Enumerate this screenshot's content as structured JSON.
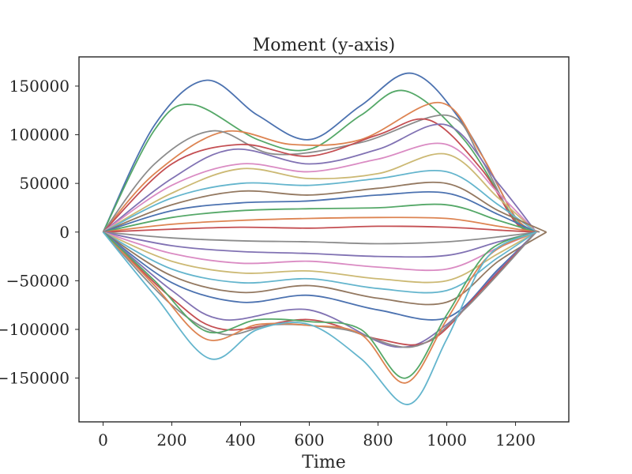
{
  "chart_data": {
    "type": "line",
    "title": "Moment (y-axis)",
    "xlabel": "Time",
    "ylabel": "",
    "xlim": [
      -70,
      1355
    ],
    "ylim": [
      -195000,
      180000
    ],
    "grid": false,
    "legend": "none",
    "x_ticks": [
      0,
      200,
      400,
      600,
      800,
      1000,
      1200
    ],
    "x_tick_labels": [
      "0",
      "200",
      "400",
      "600",
      "800",
      "1000",
      "1200"
    ],
    "y_ticks": [
      150000,
      100000,
      50000,
      0,
      -50000,
      -100000,
      -150000
    ],
    "y_tick_labels": [
      "150000",
      "100000",
      "50000",
      "0",
      "−50000",
      "−100000",
      "−150000"
    ],
    "palette": [
      "#4c72b0",
      "#dd8452",
      "#55a868",
      "#c44e52",
      "#8172b3",
      "#937860",
      "#da8bc3",
      "#8c8c8c",
      "#ccb974",
      "#64b5cd"
    ],
    "series": [
      {
        "color": "#4c72b0",
        "x": [
          0,
          150,
          300,
          450,
          600,
          750,
          900,
          1050,
          1200,
          1260
        ],
        "values": [
          0,
          110000,
          156000,
          120000,
          95000,
          130000,
          163000,
          110000,
          15000,
          0
        ]
      },
      {
        "color": "#55a868",
        "x": [
          0,
          150,
          260,
          450,
          600,
          750,
          880,
          1050,
          1200,
          1260
        ],
        "values": [
          0,
          105000,
          131000,
          95000,
          85000,
          120000,
          145000,
          95000,
          12000,
          0
        ]
      },
      {
        "color": "#dd8452",
        "x": [
          0,
          150,
          350,
          550,
          750,
          980,
          1100,
          1200,
          1270
        ],
        "values": [
          0,
          60000,
          103000,
          90000,
          95000,
          133000,
          80000,
          15000,
          0
        ]
      },
      {
        "color": "#8c8c8c",
        "x": [
          0,
          150,
          320,
          500,
          750,
          1000,
          1100,
          1200,
          1270
        ],
        "values": [
          0,
          70000,
          104000,
          80000,
          92000,
          120000,
          75000,
          10000,
          0
        ]
      },
      {
        "color": "#c44e52",
        "x": [
          0,
          200,
          400,
          600,
          800,
          950,
          1100,
          1200,
          1260
        ],
        "values": [
          0,
          70000,
          90000,
          78000,
          100000,
          115000,
          65000,
          10000,
          0
        ]
      },
      {
        "color": "#8172b3",
        "x": [
          0,
          200,
          380,
          600,
          800,
          1000,
          1150,
          1260
        ],
        "values": [
          0,
          55000,
          85000,
          70000,
          85000,
          110000,
          50000,
          0
        ]
      },
      {
        "color": "#da8bc3",
        "x": [
          0,
          200,
          400,
          600,
          800,
          1000,
          1150,
          1260
        ],
        "values": [
          0,
          48000,
          70000,
          62000,
          75000,
          90000,
          40000,
          0
        ]
      },
      {
        "color": "#ccb974",
        "x": [
          0,
          200,
          400,
          600,
          800,
          1000,
          1150,
          1260
        ],
        "values": [
          0,
          40000,
          65000,
          55000,
          60000,
          80000,
          35000,
          0
        ]
      },
      {
        "color": "#64b5cd",
        "x": [
          0,
          200,
          400,
          600,
          800,
          1000,
          1150,
          1260
        ],
        "values": [
          0,
          35000,
          50000,
          48000,
          55000,
          62000,
          28000,
          0
        ]
      },
      {
        "color": "#937860",
        "x": [
          0,
          200,
          400,
          600,
          800,
          1000,
          1150,
          1290
        ],
        "values": [
          0,
          28000,
          42000,
          38000,
          45000,
          50000,
          22000,
          0
        ]
      },
      {
        "color": "#4c72b0",
        "x": [
          0,
          200,
          400,
          600,
          800,
          1000,
          1150,
          1260
        ],
        "values": [
          0,
          22000,
          30000,
          32000,
          38000,
          40000,
          18000,
          0
        ]
      },
      {
        "color": "#55a868",
        "x": [
          0,
          200,
          400,
          600,
          800,
          1000,
          1150,
          1260
        ],
        "values": [
          0,
          15000,
          22000,
          24000,
          25000,
          28000,
          12000,
          0
        ]
      },
      {
        "color": "#dd8452",
        "x": [
          0,
          200,
          400,
          600,
          800,
          1000,
          1150,
          1260
        ],
        "values": [
          0,
          8000,
          12000,
          14000,
          15000,
          14000,
          6000,
          0
        ]
      },
      {
        "color": "#c44e52",
        "x": [
          0,
          200,
          400,
          600,
          800,
          1000,
          1150,
          1260
        ],
        "values": [
          0,
          3000,
          5000,
          4000,
          6000,
          5000,
          2000,
          0
        ]
      },
      {
        "color": "#8c8c8c",
        "x": [
          0,
          200,
          400,
          600,
          800,
          1000,
          1150,
          1260
        ],
        "values": [
          0,
          -6000,
          -9000,
          -10000,
          -12000,
          -10000,
          -5000,
          0
        ]
      },
      {
        "color": "#8172b3",
        "x": [
          0,
          200,
          400,
          600,
          800,
          1000,
          1150,
          1260
        ],
        "values": [
          0,
          -14000,
          -20000,
          -22000,
          -25000,
          -24000,
          -10000,
          0
        ]
      },
      {
        "color": "#da8bc3",
        "x": [
          0,
          200,
          400,
          600,
          800,
          1000,
          1150,
          1260
        ],
        "values": [
          0,
          -22000,
          -32000,
          -30000,
          -36000,
          -38000,
          -16000,
          0
        ]
      },
      {
        "color": "#ccb974",
        "x": [
          0,
          200,
          400,
          600,
          800,
          1000,
          1150,
          1260
        ],
        "values": [
          0,
          -30000,
          -42000,
          -40000,
          -48000,
          -50000,
          -22000,
          0
        ]
      },
      {
        "color": "#64b5cd",
        "x": [
          0,
          200,
          400,
          600,
          800,
          1000,
          1150,
          1260
        ],
        "values": [
          0,
          -38000,
          -52000,
          -48000,
          -58000,
          -60000,
          -26000,
          0
        ]
      },
      {
        "color": "#937860",
        "x": [
          0,
          200,
          400,
          600,
          800,
          1000,
          1150,
          1290
        ],
        "values": [
          0,
          -45000,
          -62000,
          -55000,
          -68000,
          -72000,
          -30000,
          0
        ]
      },
      {
        "color": "#4c72b0",
        "x": [
          0,
          200,
          400,
          600,
          800,
          1000,
          1150,
          1260
        ],
        "values": [
          0,
          -52000,
          -72000,
          -65000,
          -80000,
          -88000,
          -38000,
          0
        ]
      },
      {
        "color": "#8172b3",
        "x": [
          0,
          200,
          350,
          600,
          850,
          1000,
          1150,
          1260
        ],
        "values": [
          0,
          -60000,
          -90000,
          -80000,
          -118000,
          -95000,
          -40000,
          0
        ]
      },
      {
        "color": "#c44e52",
        "x": [
          0,
          200,
          350,
          600,
          800,
          950,
          1100,
          1260
        ],
        "values": [
          0,
          -68000,
          -100000,
          -90000,
          -110000,
          -112000,
          -60000,
          0
        ]
      },
      {
        "color": "#8c8c8c",
        "x": [
          0,
          200,
          350,
          500,
          700,
          900,
          1050,
          1260
        ],
        "values": [
          0,
          -75000,
          -105000,
          -95000,
          -100000,
          -118000,
          -80000,
          0
        ]
      },
      {
        "color": "#dd8452",
        "x": [
          0,
          150,
          300,
          450,
          600,
          750,
          880,
          1000,
          1120,
          1260
        ],
        "values": [
          0,
          -55000,
          -110000,
          -95000,
          -96000,
          -105000,
          -155000,
          -90000,
          -25000,
          0
        ]
      },
      {
        "color": "#55a868",
        "x": [
          0,
          150,
          300,
          450,
          600,
          750,
          880,
          1000,
          1120,
          1260
        ],
        "values": [
          0,
          -50000,
          -102000,
          -90000,
          -92000,
          -100000,
          -150000,
          -85000,
          -20000,
          0
        ]
      },
      {
        "color": "#64b5cd",
        "x": [
          0,
          150,
          310,
          450,
          600,
          750,
          890,
          1000,
          1120,
          1260
        ],
        "values": [
          0,
          -65000,
          -130000,
          -100000,
          -95000,
          -130000,
          -177000,
          -110000,
          -25000,
          0
        ]
      }
    ]
  }
}
